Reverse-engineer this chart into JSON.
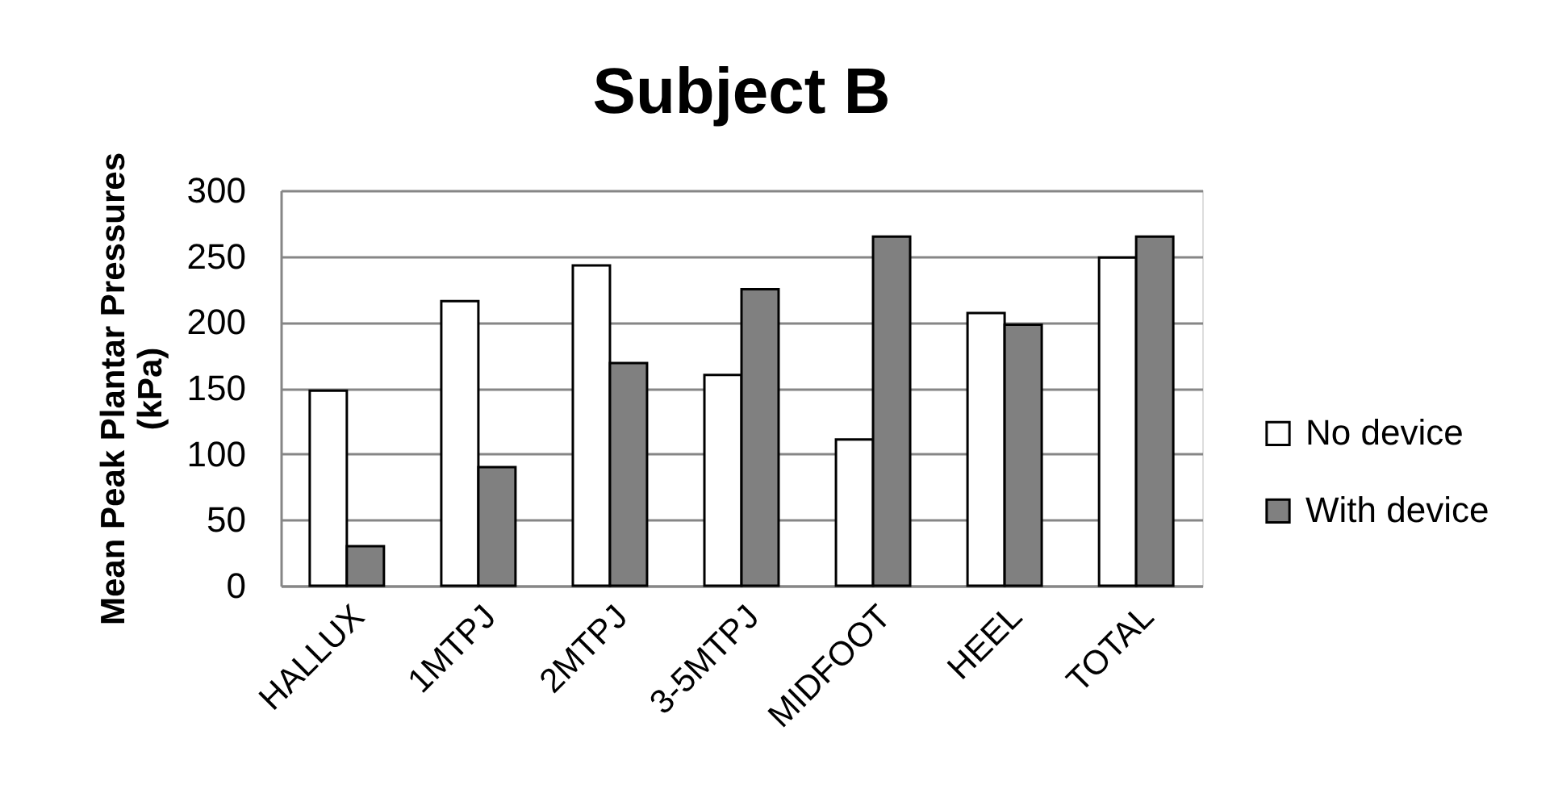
{
  "chart_data": {
    "type": "bar",
    "title": "Subject B",
    "ylabel": "Mean Peak Plantar Pressures (kPa)",
    "categories": [
      "HALLUX",
      "1MTPJ",
      "2MTPJ",
      "3-5MTPJ",
      "MIDFOOT",
      "HEEL",
      "TOTAL"
    ],
    "series": [
      {
        "name": "No device",
        "color": "#ffffff",
        "values": [
          148,
          216,
          243,
          160,
          111,
          207,
          249
        ]
      },
      {
        "name": "With device",
        "color": "#808080",
        "values": [
          30,
          90,
          169,
          225,
          265,
          198,
          265
        ]
      }
    ],
    "ylim": [
      0,
      300
    ],
    "yticks": [
      0,
      50,
      100,
      150,
      200,
      250,
      300
    ],
    "grid": "y",
    "legend": "right"
  }
}
